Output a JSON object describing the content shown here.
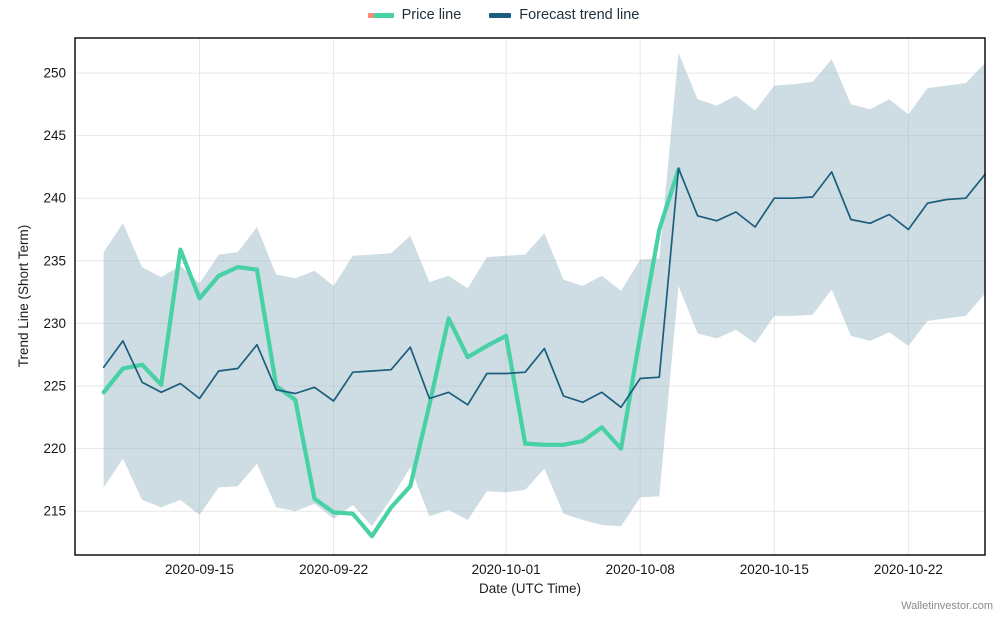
{
  "legend": {
    "items": [
      {
        "label": "Price line"
      },
      {
        "label": "Forecast trend line"
      }
    ]
  },
  "axes": {
    "x_label": "Date (UTC Time)",
    "y_label": "Trend Line (Short Term)"
  },
  "watermark": "Walletinvestor.com",
  "colors": {
    "price_line": "#47d1a4",
    "price_accent": "#f58d79",
    "forecast_line": "#1b5e7d",
    "band_fill": "rgba(146,177,195,0.45)",
    "grid": "#e7e7e7",
    "plot_border": "#000000",
    "tick_text": "#161616"
  },
  "chart_data": {
    "type": "line",
    "title": "",
    "xlabel": "Date (UTC Time)",
    "ylabel": "Trend Line (Short Term)",
    "grid": true,
    "legend_position": "top-center",
    "x_unit": "day-index (day 0 = first plotted point, ticks labeled by date)",
    "xlim_days": [
      -1.5,
      46.0
    ],
    "ylim": [
      211.5,
      252.8
    ],
    "y_ticks": [
      215,
      220,
      225,
      230,
      235,
      240,
      245,
      250
    ],
    "x_ticks": [
      {
        "day": 5,
        "label": "2020-09-15"
      },
      {
        "day": 12,
        "label": "2020-09-22"
      },
      {
        "day": 21,
        "label": "2020-10-01"
      },
      {
        "day": 28,
        "label": "2020-10-08"
      },
      {
        "day": 35,
        "label": "2020-10-15"
      },
      {
        "day": 42,
        "label": "2020-10-22"
      }
    ],
    "series": [
      {
        "name": "Price line",
        "start_day": 0,
        "line_width": 4.2,
        "values": [
          224.5,
          226.4,
          226.7,
          225.1,
          235.9,
          232.0,
          233.8,
          234.5,
          234.3,
          225.0,
          223.9,
          216.0,
          214.9,
          214.8,
          213.0,
          215.3,
          217.0,
          223.5,
          230.4,
          227.3,
          228.2,
          229.0,
          220.4,
          220.3,
          220.3,
          220.6,
          221.7,
          220.0,
          229.0,
          237.5,
          242.3
        ]
      },
      {
        "name": "Forecast trend line",
        "start_day": 0,
        "line_width": 1.7,
        "values": [
          226.5,
          228.6,
          225.3,
          224.5,
          225.2,
          224.0,
          226.2,
          226.4,
          228.3,
          224.7,
          224.4,
          224.9,
          223.8,
          226.1,
          226.2,
          226.3,
          228.1,
          224.0,
          224.5,
          223.5,
          226.0,
          226.0,
          226.1,
          228.0,
          224.2,
          223.7,
          224.5,
          223.3,
          225.6,
          225.7,
          242.4,
          238.6,
          238.2,
          238.9,
          237.7,
          240.0,
          240.0,
          240.1,
          242.1,
          238.3,
          238.0,
          238.7,
          237.5,
          239.6,
          239.9,
          240.0,
          241.9
        ]
      }
    ],
    "band": {
      "name": "Forecast confidence band",
      "start_day": 0,
      "upper": [
        235.7,
        238.0,
        234.5,
        233.7,
        234.6,
        233.2,
        235.5,
        235.7,
        237.7,
        233.9,
        233.6,
        234.2,
        233.0,
        235.4,
        235.5,
        235.6,
        237.0,
        233.3,
        233.8,
        232.8,
        235.3,
        235.4,
        235.5,
        237.2,
        233.5,
        233.0,
        233.8,
        232.6,
        235.1,
        235.2,
        251.6,
        247.9,
        247.4,
        248.2,
        247.0,
        249.0,
        249.1,
        249.3,
        251.1,
        247.5,
        247.1,
        247.9,
        246.7,
        248.8,
        249.0,
        249.2,
        250.8
      ],
      "lower": [
        216.9,
        219.2,
        215.9,
        215.3,
        215.9,
        214.7,
        216.9,
        217.0,
        218.8,
        215.3,
        215.0,
        215.6,
        214.4,
        215.5,
        213.8,
        216.0,
        218.5,
        214.6,
        215.1,
        214.3,
        216.6,
        216.5,
        216.7,
        218.4,
        214.8,
        214.3,
        213.9,
        213.8,
        216.1,
        216.2,
        233.0,
        229.2,
        228.8,
        229.5,
        228.4,
        230.6,
        230.6,
        230.7,
        232.7,
        229.0,
        228.6,
        229.3,
        228.2,
        230.2,
        230.4,
        230.6,
        232.4
      ]
    }
  }
}
